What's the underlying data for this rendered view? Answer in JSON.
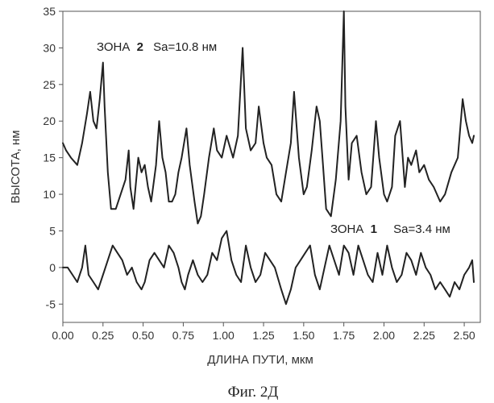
{
  "chart_data": {
    "type": "line",
    "xlabel": "ДЛИНА ПУТИ, мкм",
    "ylabel": "ВЫСОТА, нм",
    "xlim": [
      0,
      2.6
    ],
    "ylim": [
      -7.5,
      35
    ],
    "x_ticks": [
      "0.00",
      "0.25",
      "0.50",
      "0.75",
      "1.00",
      "1.25",
      "1.50",
      "1.75",
      "2.00",
      "2.25",
      "2.50"
    ],
    "y_ticks": [
      "-5",
      "0",
      "5",
      "10",
      "15",
      "20",
      "25",
      "30",
      "35"
    ],
    "grid": false,
    "series": [
      {
        "name": "ЗОНА 2",
        "annotation": {
          "zone": "ЗОНА",
          "num": "2",
          "sa": "Sa=10.8 нм"
        },
        "x": [
          0.0,
          0.02,
          0.05,
          0.09,
          0.12,
          0.15,
          0.17,
          0.19,
          0.21,
          0.23,
          0.25,
          0.26,
          0.28,
          0.3,
          0.33,
          0.36,
          0.39,
          0.41,
          0.42,
          0.44,
          0.47,
          0.49,
          0.51,
          0.53,
          0.55,
          0.58,
          0.6,
          0.62,
          0.64,
          0.66,
          0.68,
          0.7,
          0.72,
          0.74,
          0.77,
          0.79,
          0.82,
          0.84,
          0.86,
          0.88,
          0.91,
          0.94,
          0.96,
          0.99,
          1.02,
          1.06,
          1.09,
          1.12,
          1.14,
          1.17,
          1.2,
          1.22,
          1.25,
          1.27,
          1.3,
          1.33,
          1.36,
          1.39,
          1.42,
          1.44,
          1.47,
          1.5,
          1.52,
          1.55,
          1.58,
          1.6,
          1.62,
          1.64,
          1.67,
          1.7,
          1.73,
          1.75,
          1.76,
          1.78,
          1.8,
          1.83,
          1.86,
          1.89,
          1.92,
          1.95,
          1.97,
          2.0,
          2.02,
          2.05,
          2.07,
          2.1,
          2.13,
          2.15,
          2.17,
          2.2,
          2.22,
          2.25,
          2.28,
          2.31,
          2.35,
          2.38,
          2.42,
          2.46,
          2.49,
          2.51,
          2.53,
          2.55,
          2.56
        ],
        "y": [
          17,
          16,
          15,
          14,
          17,
          21,
          24,
          20,
          19,
          23,
          28,
          22,
          13,
          8,
          8,
          10,
          12,
          16,
          11,
          8,
          15,
          13,
          14,
          11,
          9,
          14,
          20,
          15,
          13,
          9,
          9,
          10,
          13,
          15,
          19,
          14,
          9,
          6,
          7,
          10,
          15,
          19,
          16,
          15,
          18,
          15,
          18,
          30,
          19,
          16,
          17,
          22,
          17,
          15,
          14,
          10,
          9,
          13,
          17,
          24,
          15,
          10,
          11,
          16,
          22,
          20,
          14,
          8,
          7,
          12,
          20,
          35,
          22,
          12,
          17,
          18,
          13,
          10,
          11,
          20,
          15,
          10,
          9,
          11,
          18,
          20,
          11,
          15,
          14,
          16,
          13,
          14,
          12,
          11,
          9,
          10,
          13,
          15,
          23,
          20,
          18,
          17,
          18
        ]
      },
      {
        "name": "ЗОНА 1",
        "annotation": {
          "zone": "ЗОНА",
          "num": "1",
          "sa": "Sa=3.4 нм"
        },
        "x": [
          0.0,
          0.03,
          0.06,
          0.09,
          0.12,
          0.14,
          0.16,
          0.19,
          0.22,
          0.25,
          0.28,
          0.31,
          0.34,
          0.37,
          0.4,
          0.43,
          0.46,
          0.49,
          0.51,
          0.54,
          0.57,
          0.6,
          0.63,
          0.66,
          0.69,
          0.72,
          0.74,
          0.76,
          0.78,
          0.81,
          0.84,
          0.87,
          0.9,
          0.93,
          0.96,
          0.99,
          1.02,
          1.05,
          1.08,
          1.11,
          1.14,
          1.17,
          1.2,
          1.23,
          1.26,
          1.29,
          1.32,
          1.36,
          1.39,
          1.42,
          1.45,
          1.48,
          1.51,
          1.54,
          1.57,
          1.6,
          1.63,
          1.66,
          1.69,
          1.72,
          1.75,
          1.78,
          1.81,
          1.84,
          1.87,
          1.9,
          1.93,
          1.96,
          1.99,
          2.02,
          2.05,
          2.08,
          2.11,
          2.14,
          2.17,
          2.2,
          2.23,
          2.26,
          2.29,
          2.32,
          2.35,
          2.38,
          2.41,
          2.44,
          2.47,
          2.5,
          2.53,
          2.55,
          2.56
        ],
        "y": [
          0,
          0,
          -1,
          -2,
          0,
          3,
          -1,
          -2,
          -3,
          -1,
          1,
          3,
          2,
          1,
          -1,
          0,
          -2,
          -3,
          -2,
          1,
          2,
          1,
          0,
          3,
          2,
          0,
          -2,
          -3,
          -1,
          1,
          -1,
          -2,
          -1,
          2,
          1,
          4,
          5,
          1,
          -1,
          -2,
          3,
          0,
          -2,
          -1,
          2,
          1,
          0,
          -3,
          -5,
          -3,
          0,
          1,
          2,
          3,
          -1,
          -3,
          0,
          3,
          1,
          -1,
          3,
          2,
          -1,
          3,
          1,
          -1,
          -2,
          2,
          -1,
          3,
          0,
          -2,
          -1,
          2,
          1,
          -1,
          2,
          0,
          -1,
          -3,
          -2,
          -3,
          -4,
          -2,
          -3,
          -1,
          0,
          1,
          -2
        ]
      }
    ]
  },
  "caption": "Фиг. 2Д"
}
